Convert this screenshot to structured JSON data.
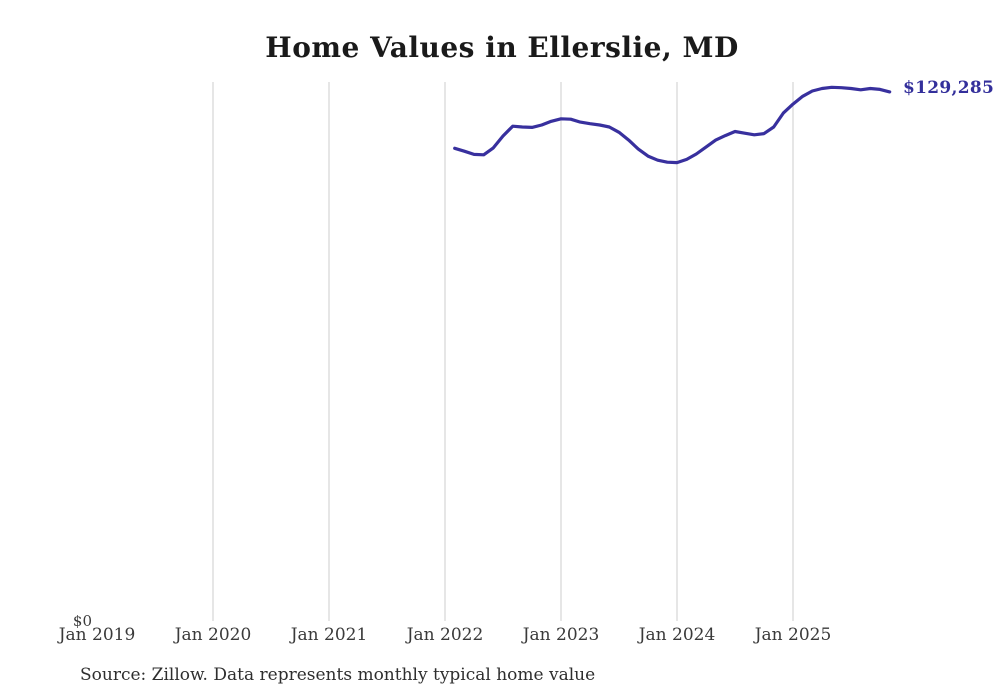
{
  "title": "Home Values in Ellerslie, MD",
  "end_label": "$129,285",
  "source_note": "Source: Zillow. Data represents monthly typical home value",
  "y_axis": {
    "zero_label": "$0"
  },
  "colors": {
    "line": "#38309e",
    "end_label_text": "#332f9b",
    "gridline": "#cccccc",
    "axis_text": "#3a3a3a"
  },
  "chart_data": {
    "type": "line",
    "title": "Home Values in Ellerslie, MD",
    "xlabel": "",
    "ylabel": "",
    "legend": "none",
    "grid": "vertical-only",
    "ylim": [
      0,
      131700
    ],
    "x_ticks": [
      {
        "label": "Jan 2019",
        "month_offset": 0,
        "gridline": false
      },
      {
        "label": "Jan 2020",
        "month_offset": 12,
        "gridline": true
      },
      {
        "label": "Jan 2021",
        "month_offset": 24,
        "gridline": true
      },
      {
        "label": "Jan 2022",
        "month_offset": 36,
        "gridline": true
      },
      {
        "label": "Jan 2023",
        "month_offset": 48,
        "gridline": true
      },
      {
        "label": "Jan 2024",
        "month_offset": 60,
        "gridline": true
      },
      {
        "label": "Jan 2025",
        "month_offset": 72,
        "gridline": true
      }
    ],
    "series_start_month_offset": 37,
    "categories": [
      "Feb 2022",
      "Mar 2022",
      "Apr 2022",
      "May 2022",
      "Jun 2022",
      "Jul 2022",
      "Aug 2022",
      "Sep 2022",
      "Oct 2022",
      "Nov 2022",
      "Dec 2022",
      "Jan 2023",
      "Feb 2023",
      "Mar 2023",
      "Apr 2023",
      "May 2023",
      "Jun 2023",
      "Jul 2023",
      "Aug 2023",
      "Sep 2023",
      "Oct 2023",
      "Nov 2023",
      "Dec 2023",
      "Jan 2024",
      "Feb 2024",
      "Mar 2024",
      "Apr 2024",
      "May 2024",
      "Jun 2024",
      "Jul 2024",
      "Aug 2024",
      "Sep 2024",
      "Oct 2024",
      "Nov 2024",
      "Dec 2024",
      "Jan 2025",
      "Feb 2025",
      "Mar 2025",
      "Apr 2025",
      "May 2025",
      "Jun 2025",
      "Jul 2025",
      "Aug 2025",
      "Sep 2025",
      "Oct 2025",
      "Nov 2025"
    ],
    "values": [
      115500,
      114800,
      114000,
      113900,
      115600,
      118500,
      120900,
      120700,
      120600,
      121200,
      122100,
      122700,
      122600,
      121900,
      121500,
      121200,
      120700,
      119400,
      117500,
      115300,
      113600,
      112600,
      112100,
      112000,
      112800,
      114100,
      115800,
      117500,
      118600,
      119600,
      119200,
      118800,
      119100,
      120700,
      124100,
      126300,
      128200,
      129500,
      130100,
      130400,
      130300,
      130100,
      129800,
      130100,
      129900,
      129285
    ],
    "end_annotation": "$129,285",
    "y_zero_tick": "$0"
  }
}
